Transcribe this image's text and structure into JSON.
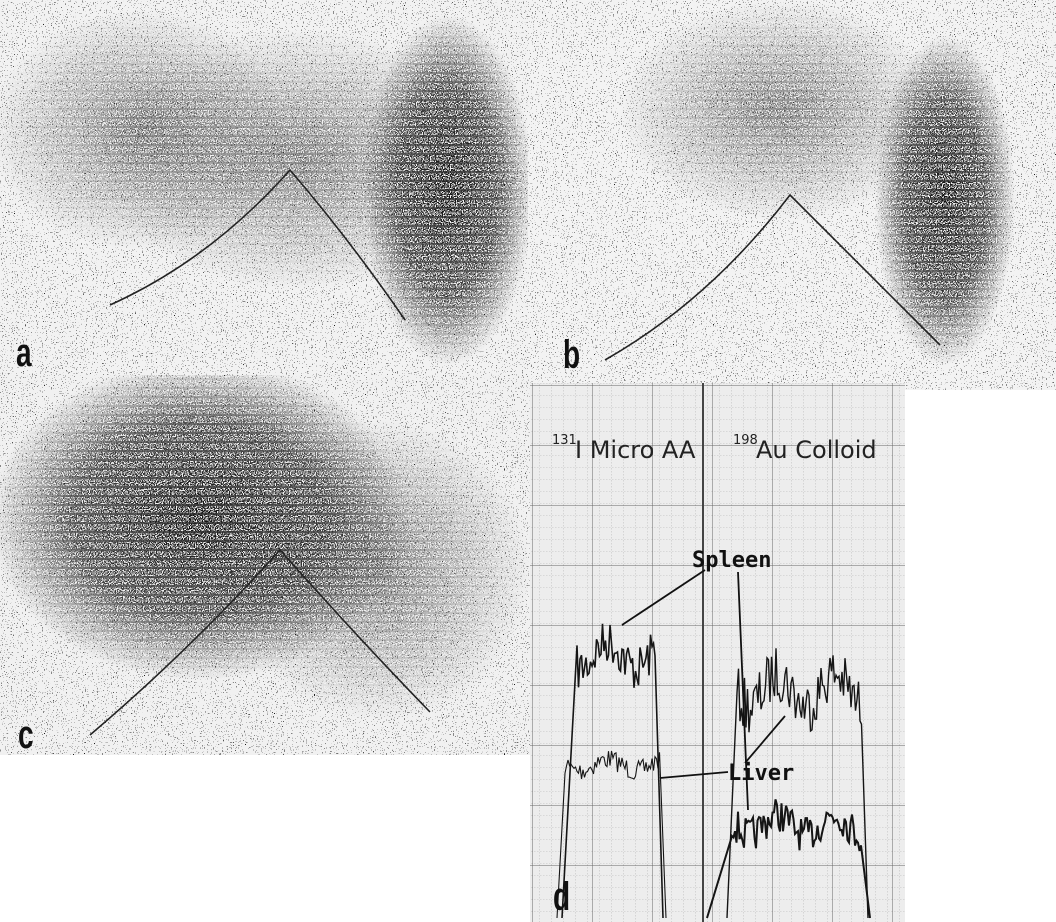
{
  "panels": [
    {
      "label": "a"
    },
    {
      "label": "b"
    },
    {
      "label": "c"
    },
    {
      "label": "d",
      "traces": [
        {
          "mass": "131",
          "name": "I Micro AA"
        },
        {
          "mass": "198",
          "name": "Au Colloid"
        }
      ],
      "annotations": [
        "Spleen",
        "Liver"
      ]
    }
  ]
}
